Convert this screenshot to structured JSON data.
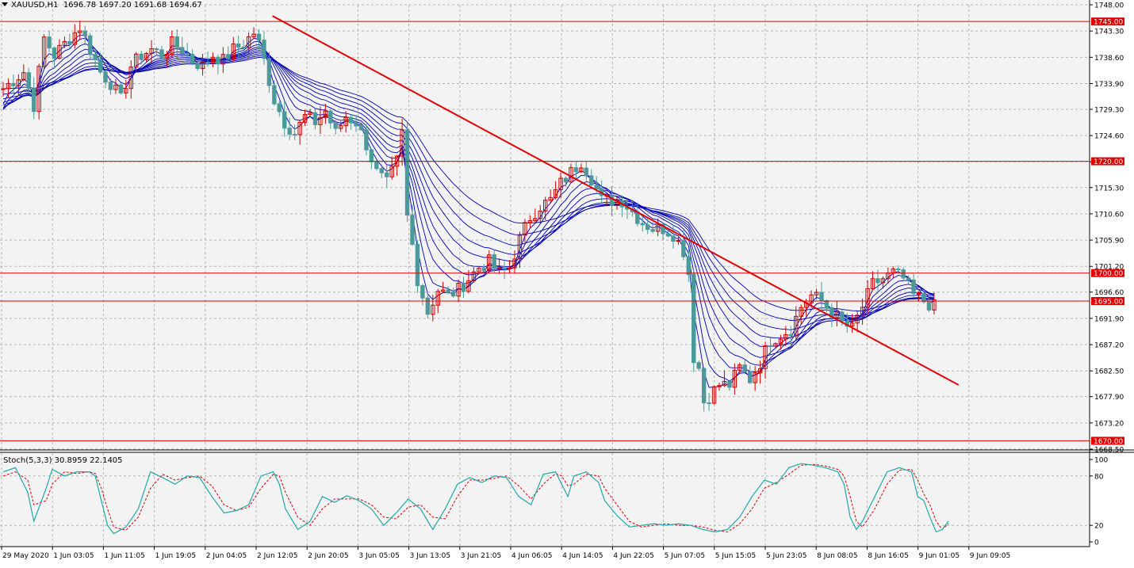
{
  "header": {
    "symbol_timeframe": "XAUUSD,H1",
    "ohlc": "1696.78 1697.20 1691.68 1694.67"
  },
  "oscillator": {
    "label": "Stoch(5,3,3) 30.8959 22.1405"
  },
  "colors": {
    "background": "#f3f3f3",
    "grid": "#b4b4b4",
    "bull_candle": "#d00000",
    "bear_candle": "#4a9a9a",
    "ma_ribbon": "#0000b0",
    "level_line": "#e00000",
    "trendline": "#e00000",
    "stoch_main": "#20a8a8",
    "stoch_signal": "#e00000"
  },
  "chart_data": [
    {
      "type": "candlestick",
      "symbol": "XAUUSD",
      "timeframe": "H1",
      "ylim": [
        1668.5,
        1748.0
      ],
      "y_ticks": [
        "1748.00",
        "1743.30",
        "1738.60",
        "1733.90",
        "1729.30",
        "1724.60",
        "1719.90",
        "1715.30",
        "1710.60",
        "1705.90",
        "1701.20",
        "1696.60",
        "1691.90",
        "1687.20",
        "1682.50",
        "1677.90",
        "1673.20",
        "1668.50"
      ],
      "x_ticks": [
        "29 May 2020",
        "1 Jun 03:05",
        "1 Jun 11:05",
        "1 Jun 19:05",
        "2 Jun 04:05",
        "2 Jun 12:05",
        "2 Jun 20:05",
        "3 Jun 05:05",
        "3 Jun 13:05",
        "3 Jun 21:05",
        "4 Jun 06:05",
        "4 Jun 14:05",
        "4 Jun 22:05",
        "5 Jun 07:05",
        "5 Jun 15:05",
        "5 Jun 23:05",
        "8 Jun 08:05",
        "8 Jun 16:05",
        "9 Jun 01:05",
        "9 Jun 09:05"
      ],
      "horizontal_levels": [
        {
          "value": 1745.0,
          "label": "1745.00"
        },
        {
          "value": 1720.0,
          "label": "1720.00"
        },
        {
          "value": 1700.0,
          "label": "1700.00"
        },
        {
          "value": 1695.0,
          "label": "1695.00"
        },
        {
          "value": 1670.0,
          "label": "1670.00"
        }
      ],
      "trendline": {
        "from": {
          "bar": 48,
          "price": 1746.0
        },
        "to": {
          "bar": 186,
          "price": 1680.0
        }
      },
      "close_path": [
        [
          0,
          1733
        ],
        [
          4,
          1736
        ],
        [
          6,
          1730
        ],
        [
          8,
          1742
        ],
        [
          10,
          1739
        ],
        [
          13,
          1742
        ],
        [
          15,
          1744
        ],
        [
          17,
          1740
        ],
        [
          19,
          1736
        ],
        [
          21,
          1734
        ],
        [
          23,
          1731
        ],
        [
          25,
          1737
        ],
        [
          27,
          1739
        ],
        [
          29,
          1740
        ],
        [
          31,
          1739
        ],
        [
          33,
          1741
        ],
        [
          35,
          1740
        ],
        [
          37,
          1738
        ],
        [
          39,
          1737
        ],
        [
          41,
          1739
        ],
        [
          43,
          1738
        ],
        [
          45,
          1740
        ],
        [
          47,
          1741
        ],
        [
          49,
          1743
        ],
        [
          50,
          1741
        ],
        [
          51,
          1738
        ],
        [
          53,
          1731
        ],
        [
          55,
          1727
        ],
        [
          57,
          1725
        ],
        [
          59,
          1728
        ],
        [
          61,
          1727
        ],
        [
          63,
          1729
        ],
        [
          65,
          1725
        ],
        [
          67,
          1728
        ],
        [
          69,
          1727
        ],
        [
          71,
          1723
        ],
        [
          73,
          1718
        ],
        [
          75,
          1716
        ],
        [
          77,
          1720
        ],
        [
          78,
          1725
        ],
        [
          79,
          1710
        ],
        [
          80,
          1705
        ],
        [
          81,
          1699
        ],
        [
          83,
          1693
        ],
        [
          85,
          1697
        ],
        [
          87,
          1696
        ],
        [
          89,
          1697
        ],
        [
          91,
          1699
        ],
        [
          93,
          1701
        ],
        [
          95,
          1702
        ],
        [
          97,
          1700
        ],
        [
          99,
          1701
        ],
        [
          101,
          1706
        ],
        [
          103,
          1710
        ],
        [
          105,
          1712
        ],
        [
          107,
          1713
        ],
        [
          109,
          1716
        ],
        [
          111,
          1718
        ],
        [
          113,
          1720
        ],
        [
          115,
          1717
        ],
        [
          117,
          1713
        ],
        [
          119,
          1713
        ],
        [
          121,
          1713
        ],
        [
          123,
          1711
        ],
        [
          125,
          1709
        ],
        [
          127,
          1708
        ],
        [
          129,
          1708
        ],
        [
          131,
          1707
        ],
        [
          133,
          1704
        ],
        [
          134,
          1700
        ],
        [
          135,
          1685
        ],
        [
          136,
          1683
        ],
        [
          137,
          1677
        ],
        [
          138,
          1678
        ],
        [
          140,
          1680
        ],
        [
          142,
          1680
        ],
        [
          144,
          1683
        ],
        [
          146,
          1681
        ],
        [
          148,
          1684
        ],
        [
          150,
          1688
        ],
        [
          152,
          1689
        ],
        [
          154,
          1690
        ],
        [
          156,
          1694
        ],
        [
          158,
          1696
        ],
        [
          160,
          1695
        ],
        [
          162,
          1693
        ],
        [
          164,
          1691
        ],
        [
          166,
          1690
        ],
        [
          168,
          1694
        ],
        [
          170,
          1698
        ],
        [
          172,
          1699
        ],
        [
          174,
          1700
        ],
        [
          176,
          1699
        ],
        [
          178,
          1696
        ],
        [
          180,
          1695
        ],
        [
          182,
          1694
        ]
      ]
    },
    {
      "type": "line",
      "name": "Stoch(5,3,3)",
      "ylim": [
        0,
        100
      ],
      "y_ticks": [
        "100",
        "80",
        "20",
        "0"
      ],
      "main_value": 30.8959,
      "signal_value": 22.1405,
      "main_path": [
        [
          0,
          85
        ],
        [
          2,
          90
        ],
        [
          4,
          60
        ],
        [
          5,
          25
        ],
        [
          7,
          65
        ],
        [
          8,
          88
        ],
        [
          10,
          80
        ],
        [
          12,
          85
        ],
        [
          14,
          85
        ],
        [
          15,
          80
        ],
        [
          16,
          50
        ],
        [
          17,
          20
        ],
        [
          18,
          10
        ],
        [
          20,
          18
        ],
        [
          22,
          40
        ],
        [
          24,
          85
        ],
        [
          26,
          78
        ],
        [
          28,
          70
        ],
        [
          30,
          80
        ],
        [
          32,
          78
        ],
        [
          34,
          55
        ],
        [
          36,
          35
        ],
        [
          38,
          38
        ],
        [
          40,
          45
        ],
        [
          42,
          80
        ],
        [
          44,
          85
        ],
        [
          45,
          70
        ],
        [
          46,
          40
        ],
        [
          48,
          15
        ],
        [
          50,
          25
        ],
        [
          52,
          55
        ],
        [
          54,
          48
        ],
        [
          56,
          56
        ],
        [
          58,
          50
        ],
        [
          60,
          40
        ],
        [
          62,
          20
        ],
        [
          64,
          35
        ],
        [
          66,
          52
        ],
        [
          68,
          40
        ],
        [
          70,
          15
        ],
        [
          72,
          40
        ],
        [
          74,
          70
        ],
        [
          76,
          78
        ],
        [
          78,
          72
        ],
        [
          80,
          80
        ],
        [
          82,
          78
        ],
        [
          84,
          55
        ],
        [
          86,
          45
        ],
        [
          88,
          82
        ],
        [
          90,
          85
        ],
        [
          91,
          70
        ],
        [
          92,
          55
        ],
        [
          93,
          80
        ],
        [
          95,
          85
        ],
        [
          97,
          72
        ],
        [
          98,
          50
        ],
        [
          100,
          32
        ],
        [
          102,
          18
        ],
        [
          104,
          20
        ],
        [
          106,
          22
        ],
        [
          108,
          20
        ],
        [
          110,
          22
        ],
        [
          112,
          20
        ],
        [
          114,
          15
        ],
        [
          116,
          12
        ],
        [
          118,
          15
        ],
        [
          120,
          30
        ],
        [
          122,
          55
        ],
        [
          124,
          75
        ],
        [
          126,
          70
        ],
        [
          128,
          90
        ],
        [
          130,
          95
        ],
        [
          132,
          93
        ],
        [
          134,
          90
        ],
        [
          136,
          85
        ],
        [
          137,
          70
        ],
        [
          138,
          30
        ],
        [
          139,
          15
        ],
        [
          140,
          25
        ],
        [
          142,
          55
        ],
        [
          144,
          85
        ],
        [
          146,
          90
        ],
        [
          148,
          85
        ],
        [
          149,
          55
        ],
        [
          150,
          50
        ],
        [
          151,
          30
        ],
        [
          152,
          12
        ],
        [
          153,
          15
        ],
        [
          154,
          25
        ]
      ],
      "signal_path": [
        [
          0,
          80
        ],
        [
          2,
          85
        ],
        [
          4,
          75
        ],
        [
          5,
          45
        ],
        [
          7,
          50
        ],
        [
          8,
          70
        ],
        [
          10,
          85
        ],
        [
          12,
          83
        ],
        [
          14,
          85
        ],
        [
          15,
          83
        ],
        [
          16,
          65
        ],
        [
          17,
          40
        ],
        [
          18,
          18
        ],
        [
          20,
          14
        ],
        [
          22,
          30
        ],
        [
          24,
          65
        ],
        [
          26,
          82
        ],
        [
          28,
          75
        ],
        [
          30,
          78
        ],
        [
          32,
          80
        ],
        [
          34,
          68
        ],
        [
          36,
          45
        ],
        [
          38,
          38
        ],
        [
          40,
          42
        ],
        [
          42,
          65
        ],
        [
          44,
          82
        ],
        [
          45,
          80
        ],
        [
          46,
          60
        ],
        [
          48,
          30
        ],
        [
          50,
          20
        ],
        [
          52,
          40
        ],
        [
          54,
          52
        ],
        [
          56,
          52
        ],
        [
          58,
          52
        ],
        [
          60,
          45
        ],
        [
          62,
          30
        ],
        [
          64,
          28
        ],
        [
          66,
          42
        ],
        [
          68,
          45
        ],
        [
          70,
          30
        ],
        [
          72,
          28
        ],
        [
          74,
          55
        ],
        [
          76,
          75
        ],
        [
          78,
          75
        ],
        [
          80,
          77
        ],
        [
          82,
          80
        ],
        [
          84,
          68
        ],
        [
          86,
          52
        ],
        [
          88,
          70
        ],
        [
          90,
          83
        ],
        [
          91,
          80
        ],
        [
          92,
          68
        ],
        [
          93,
          70
        ],
        [
          95,
          82
        ],
        [
          97,
          80
        ],
        [
          98,
          65
        ],
        [
          100,
          45
        ],
        [
          102,
          25
        ],
        [
          104,
          18
        ],
        [
          106,
          20
        ],
        [
          108,
          22
        ],
        [
          110,
          20
        ],
        [
          112,
          20
        ],
        [
          114,
          18
        ],
        [
          116,
          14
        ],
        [
          118,
          12
        ],
        [
          120,
          22
        ],
        [
          122,
          40
        ],
        [
          124,
          65
        ],
        [
          126,
          72
        ],
        [
          128,
          82
        ],
        [
          130,
          93
        ],
        [
          132,
          94
        ],
        [
          134,
          92
        ],
        [
          136,
          88
        ],
        [
          137,
          80
        ],
        [
          138,
          55
        ],
        [
          139,
          25
        ],
        [
          140,
          18
        ],
        [
          142,
          40
        ],
        [
          144,
          70
        ],
        [
          146,
          87
        ],
        [
          148,
          88
        ],
        [
          149,
          75
        ],
        [
          150,
          58
        ],
        [
          151,
          45
        ],
        [
          152,
          25
        ],
        [
          153,
          15
        ],
        [
          154,
          22
        ]
      ]
    }
  ]
}
